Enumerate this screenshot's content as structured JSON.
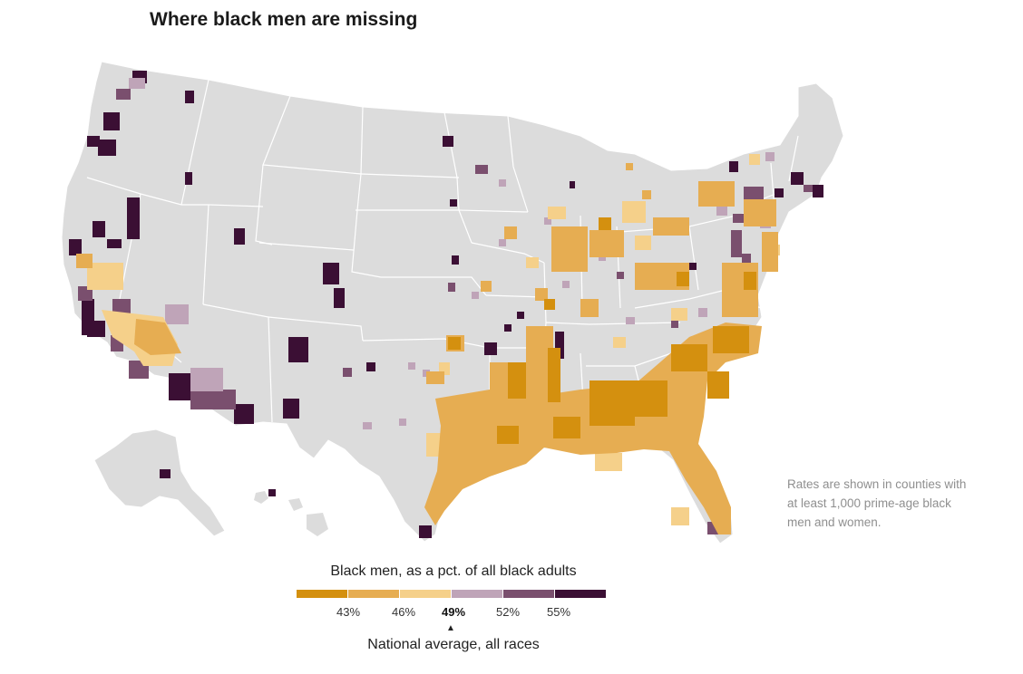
{
  "title": "Where black men are missing",
  "note": "Rates are shown in counties with at least 1,000 prime-age black men and women.",
  "legend": {
    "title": "Black men, as a pct. of all black adults",
    "colors": [
      "#d4900f",
      "#e6ad52",
      "#f5d08a",
      "#bfa4b8",
      "#7a4f6e",
      "#3b0f34"
    ],
    "ticks": [
      "43%",
      "46%",
      "49%",
      "52%",
      "55%"
    ],
    "highlight_tick": "49%",
    "marker": "▲",
    "national_label": "National average, all races"
  },
  "map": {
    "land_color": "#dcdcdc",
    "border_color": "#ffffff"
  }
}
